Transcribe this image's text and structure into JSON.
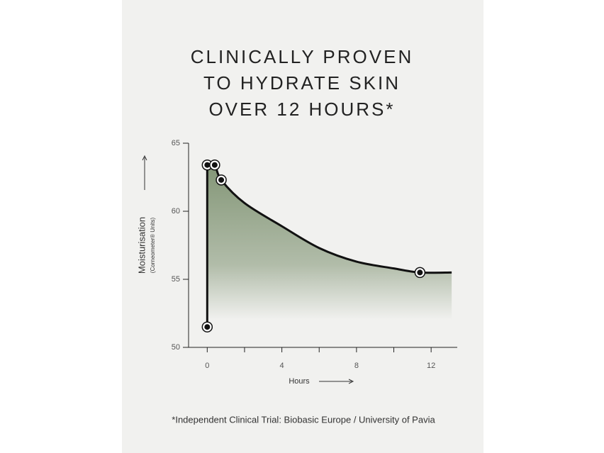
{
  "chart_data": {
    "type": "line",
    "title": [
      "CLINICALLY PROVEN",
      "TO HYDRATE SKIN",
      "OVER 12 HOURS*"
    ],
    "ylabel": "Moisturisation",
    "ylabel_sub": "(Corneometer® Units)",
    "xlabel": "Hours",
    "footnote": "*Independent Clinical Trial: Biobasic Europe / University of Pavia",
    "x": [
      0,
      0,
      0.4,
      0.75,
      2,
      4,
      6,
      8,
      10,
      11.4,
      13.1
    ],
    "values": [
      51.5,
      63.4,
      63.4,
      62.3,
      60.6,
      58.9,
      57.3,
      56.3,
      55.8,
      55.5,
      55.5
    ],
    "markers": {
      "x": [
        0,
        0,
        0.4,
        0.75,
        11.4
      ],
      "values": [
        51.5,
        63.4,
        63.4,
        62.3,
        55.5
      ]
    },
    "color": "#111111",
    "fill": "#7d9170",
    "xlim": [
      -1,
      13.4
    ],
    "ylim": [
      50,
      65
    ],
    "xticks": [
      0,
      4,
      8,
      12
    ],
    "minor_xticks": [
      2,
      6,
      10
    ],
    "yticks": [
      50,
      55,
      60,
      65
    ]
  }
}
